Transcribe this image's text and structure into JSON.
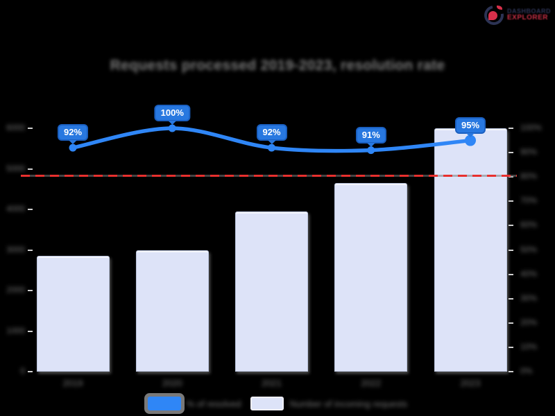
{
  "brand": {
    "line1_blurred": "DASHBOARD",
    "line2_blurred": "EXPLORER",
    "navy": "#2c3354",
    "red": "#d8304a"
  },
  "chart": {
    "title_blurred": "Requests processed 2019-2023, resolution rate"
  },
  "chart_data": {
    "type": "combo",
    "categories_blurred": [
      "2019",
      "2020",
      "2021",
      "2022",
      "2023"
    ],
    "series": [
      {
        "name_blurred": "% of resolved",
        "type": "line",
        "axis": "right",
        "color": "#2f86f6",
        "values": [
          92,
          100,
          92,
          91,
          95
        ],
        "point_labels": [
          "92%",
          "100%",
          "92%",
          "91%",
          "95%"
        ]
      },
      {
        "name_blurred": "Number of incoming requests",
        "type": "bar",
        "axis": "left",
        "color": "#dde3f8",
        "values": [
          2850,
          3000,
          3950,
          4650,
          6000
        ]
      }
    ],
    "threshold_line": {
      "axis": "right",
      "value": 80,
      "color": "#e8302e",
      "style": "dashed"
    },
    "y_axis_left": {
      "range": [
        0,
        6000
      ],
      "ticks_blurred": [
        "6000",
        "5000",
        "4000",
        "3000",
        "2000",
        "1000",
        "0"
      ]
    },
    "y_axis_right": {
      "range": [
        0,
        100
      ],
      "ticks_blurred": [
        "100%",
        "90%",
        "80%",
        "70%",
        "60%",
        "50%",
        "40%",
        "30%",
        "20%",
        "10%",
        "0%"
      ]
    },
    "grid": "off",
    "legend_position": "bottom",
    "background": "#000000"
  }
}
